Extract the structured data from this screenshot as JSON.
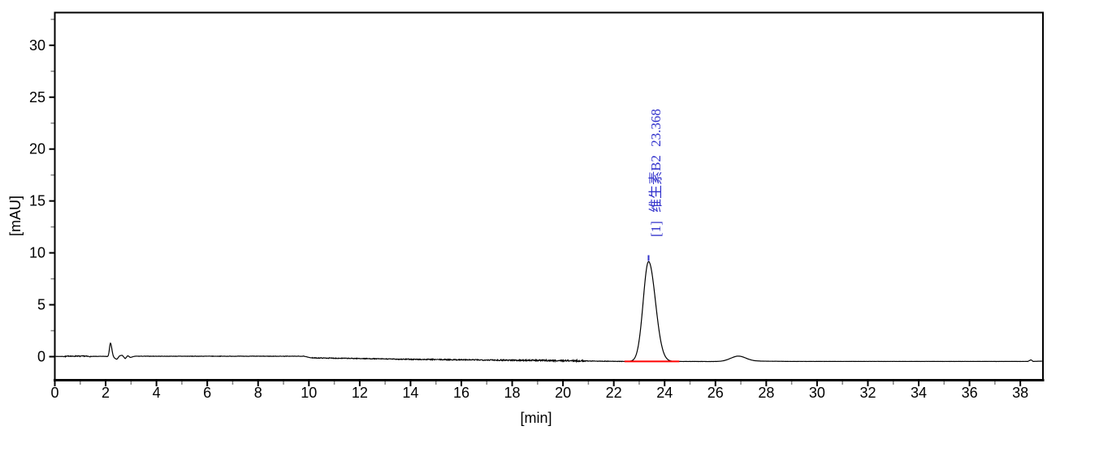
{
  "chart_data": {
    "type": "line",
    "title": "",
    "xlabel": "[min]",
    "ylabel": "[mAU]",
    "xlim": [
      0,
      38.88
    ],
    "ylim": [
      -2.25,
      33.1
    ],
    "grid": false,
    "legend": "none",
    "axes": {
      "x_major_ticks": [
        0,
        2,
        4,
        6,
        8,
        10,
        12,
        14,
        16,
        18,
        20,
        22,
        24,
        26,
        28,
        30,
        32,
        34,
        36,
        38
      ],
      "x_minor_ticks": [
        1,
        3,
        5,
        7,
        9,
        11,
        13,
        15,
        17,
        19,
        21,
        23,
        25,
        27,
        29,
        31,
        33,
        35,
        37
      ],
      "y_major_ticks": [
        0,
        5,
        10,
        15,
        20,
        25,
        30
      ],
      "y_minor_ticks": [
        2.5,
        7.5,
        12.5,
        17.5,
        22.5,
        27.5,
        32.5
      ],
      "axis_color": "#000000",
      "minor_tick_color": "#808080"
    },
    "trace": {
      "color": "#000000",
      "baseline_anchors": [
        [
          0,
          0.02
        ],
        [
          0.45,
          0.02
        ],
        [
          0.6,
          0.07
        ],
        [
          0.72,
          0.02
        ],
        [
          0.85,
          0.07
        ],
        [
          1.0,
          0.03
        ],
        [
          1.15,
          0.06
        ],
        [
          1.3,
          0.02
        ],
        [
          2.02,
          0.03
        ],
        [
          2.33,
          -0.12
        ],
        [
          2.44,
          -0.26
        ],
        [
          2.55,
          0.08
        ],
        [
          2.65,
          0.14
        ],
        [
          2.77,
          -0.2
        ],
        [
          2.87,
          0.1
        ],
        [
          2.97,
          -0.08
        ],
        [
          3.15,
          0.04
        ],
        [
          9.8,
          0.04
        ],
        [
          10.1,
          -0.12
        ],
        [
          12,
          -0.18
        ],
        [
          14,
          -0.26
        ],
        [
          16,
          -0.3
        ],
        [
          17.5,
          -0.33
        ],
        [
          19,
          -0.36
        ],
        [
          20.5,
          -0.4
        ],
        [
          21.3,
          -0.43
        ],
        [
          22.3,
          -0.46
        ],
        [
          24.5,
          -0.46
        ],
        [
          26.1,
          -0.47
        ],
        [
          27.7,
          -0.43
        ],
        [
          29,
          -0.46
        ],
        [
          38.3,
          -0.46
        ],
        [
          38.42,
          -0.3
        ],
        [
          38.5,
          -0.46
        ],
        [
          38.88,
          -0.43
        ]
      ],
      "gaussians": [
        {
          "center": 2.19,
          "height": 1.35,
          "sigma_left": 0.04,
          "sigma_right": 0.055
        },
        {
          "center": 23.368,
          "height": 9.62,
          "sigma_left": 0.21,
          "sigma_right": 0.27
        },
        {
          "center": 26.9,
          "height": 0.5,
          "sigma_left": 0.3,
          "sigma_right": 0.3
        }
      ],
      "noise": {
        "seed": 7,
        "sample_step_min": 0.015,
        "default_amp": 0.006,
        "regions": [
          {
            "from": 0.35,
            "to": 1.4,
            "amp": 0.045
          },
          {
            "from": 1.4,
            "to": 2.05,
            "amp": 0.015
          },
          {
            "from": 3.2,
            "to": 9.8,
            "amp": 0.018
          },
          {
            "from": 10.1,
            "to": 13.5,
            "amp": 0.035
          },
          {
            "from": 13.5,
            "to": 17.4,
            "amp": 0.05
          },
          {
            "from": 17.4,
            "to": 20.9,
            "amp": 0.07
          },
          {
            "from": 20.9,
            "to": 22.35,
            "amp": 0.025
          }
        ]
      }
    },
    "identified_peaks": [
      {
        "index": 1,
        "name": "维生素B2",
        "retention_time_min": 23.368,
        "apex_mau": 9.15
      }
    ],
    "integration_baseline": {
      "start_min": 22.42,
      "end_min": 24.58,
      "level_mau": -0.46,
      "color": "#ff0000"
    },
    "peak_marker": {
      "time_min": 23.368,
      "color": "#3333cc"
    },
    "peak_label": {
      "text": "[1] 维生素B2 23.368",
      "color": "#3333cc"
    }
  }
}
